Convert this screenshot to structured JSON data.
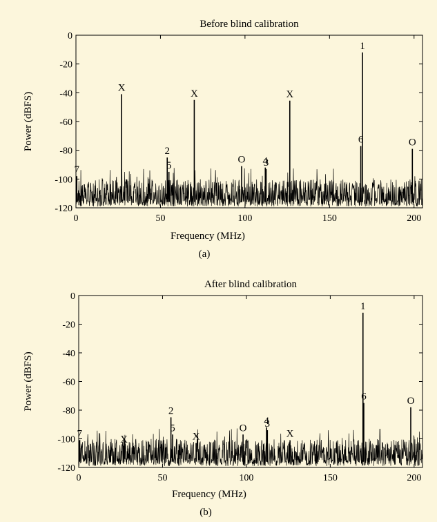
{
  "chart_data": [
    {
      "type": "line",
      "panel_caption": "(a)",
      "title": "Before blind calibration",
      "xlabel": "Frequency (MHz)",
      "ylabel": "Power (dBFS)",
      "xlim": [
        0,
        205
      ],
      "ylim": [
        -120,
        0
      ],
      "x_ticks": [
        0,
        50,
        100,
        150,
        200
      ],
      "y_ticks": [
        0,
        -20,
        -40,
        -60,
        -80,
        -100,
        -120
      ],
      "grid": false,
      "line_color": "#000000",
      "noise_floor_db": [
        -112,
        -100
      ],
      "spikes": [
        {
          "x": 27,
          "y": -41,
          "label": "X"
        },
        {
          "x": 70,
          "y": -45,
          "label": "X"
        },
        {
          "x": 126.5,
          "y": -45.5,
          "label": "X"
        },
        {
          "x": 169.5,
          "y": -12,
          "label": "1"
        },
        {
          "x": 199,
          "y": -79,
          "label": "O"
        },
        {
          "x": 98,
          "y": -91,
          "label": "O"
        },
        {
          "x": 54,
          "y": -85,
          "label": "2"
        },
        {
          "x": 55,
          "y": -95,
          "label": "5"
        },
        {
          "x": 112,
          "y": -92,
          "label": "4"
        },
        {
          "x": 112.5,
          "y": -93,
          "label": "3"
        },
        {
          "x": 168.5,
          "y": -77,
          "label": "6"
        },
        {
          "x": 0.5,
          "y": -98,
          "label": "7"
        }
      ]
    },
    {
      "type": "line",
      "panel_caption": "(b)",
      "title": "After blind calibration",
      "xlabel": "Frequency (MHz)",
      "ylabel": "Power (dBFS)",
      "xlim": [
        0,
        205
      ],
      "ylim": [
        -120,
        0
      ],
      "x_ticks": [
        0,
        50,
        100,
        150,
        200
      ],
      "y_ticks": [
        0,
        -20,
        -40,
        -60,
        -80,
        -100,
        -120
      ],
      "grid": false,
      "line_color": "#000000",
      "noise_floor_db": [
        -112,
        -100
      ],
      "spikes": [
        {
          "x": 169.5,
          "y": -12,
          "label": "1"
        },
        {
          "x": 198,
          "y": -78,
          "label": "O"
        },
        {
          "x": 98,
          "y": -97,
          "label": "O"
        },
        {
          "x": 55,
          "y": -85,
          "label": "2"
        },
        {
          "x": 56,
          "y": -97,
          "label": "5"
        },
        {
          "x": 112,
          "y": -92,
          "label": "4"
        },
        {
          "x": 112.5,
          "y": -94,
          "label": "3"
        },
        {
          "x": 170,
          "y": -75,
          "label": "6"
        },
        {
          "x": 0.5,
          "y": -101,
          "label": "7"
        },
        {
          "x": 27,
          "y": -105,
          "label": "X"
        },
        {
          "x": 70,
          "y": -103,
          "label": "X"
        },
        {
          "x": 126,
          "y": -101,
          "label": "X"
        }
      ]
    }
  ]
}
